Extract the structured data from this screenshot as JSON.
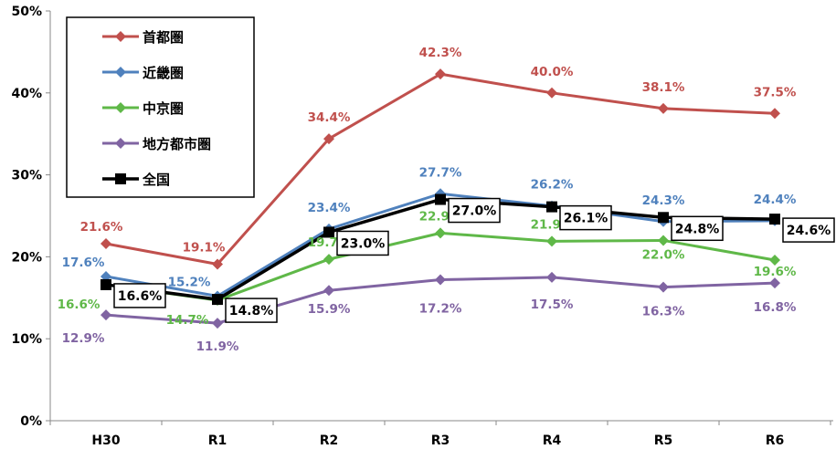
{
  "chart_data": {
    "type": "line",
    "categories": [
      "H30",
      "R1",
      "R2",
      "R3",
      "R4",
      "R5",
      "R6"
    ],
    "ylim": [
      0,
      50
    ],
    "yticks": [
      "0%",
      "10%",
      "20%",
      "30%",
      "40%",
      "50%"
    ],
    "legend_position": "top-left",
    "grid": false,
    "series": [
      {
        "name": "首都圏",
        "color": "#c0504d",
        "marker": "diamond",
        "values": [
          21.6,
          19.1,
          34.4,
          42.3,
          40.0,
          38.1,
          37.5
        ],
        "labels": [
          "21.6%",
          "19.1%",
          "34.4%",
          "42.3%",
          "40.0%",
          "38.1%",
          "37.5%"
        ]
      },
      {
        "name": "近畿圏",
        "color": "#4f81bd",
        "marker": "diamond",
        "values": [
          17.6,
          15.2,
          23.4,
          27.7,
          26.2,
          24.3,
          24.4
        ],
        "labels": [
          "17.6%",
          "15.2%",
          "23.4%",
          "27.7%",
          "26.2%",
          "24.3%",
          "24.4%"
        ]
      },
      {
        "name": "中京圏",
        "color": "#5fb848",
        "marker": "diamond",
        "values": [
          16.6,
          14.7,
          19.7,
          22.9,
          21.9,
          22.0,
          19.6
        ],
        "labels": [
          "16.6%",
          "14.7%",
          "19.7%",
          "22.9%",
          "21.9%",
          "22.0%",
          "19.6%"
        ]
      },
      {
        "name": "地方都市圏",
        "color": "#8064a2",
        "marker": "diamond",
        "values": [
          12.9,
          11.9,
          15.9,
          17.2,
          17.5,
          16.3,
          16.8
        ],
        "labels": [
          "12.9%",
          "11.9%",
          "15.9%",
          "17.2%",
          "17.5%",
          "16.3%",
          "16.8%"
        ]
      },
      {
        "name": "全国",
        "color": "#000000",
        "marker": "square",
        "values": [
          16.6,
          14.8,
          23.0,
          27.0,
          26.1,
          24.8,
          24.6
        ],
        "labels": [
          "16.6%",
          "14.8%",
          "23.0%",
          "27.0%",
          "26.1%",
          "24.8%",
          "24.6%"
        ]
      }
    ]
  }
}
